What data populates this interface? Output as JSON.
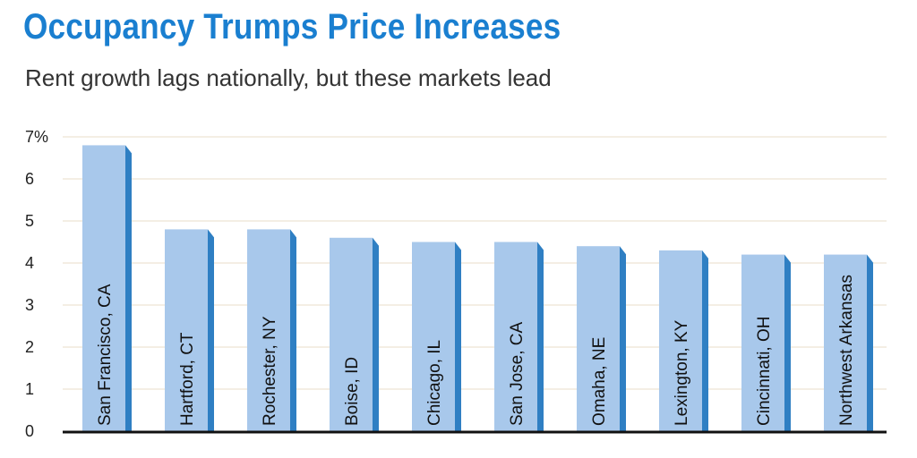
{
  "header": {
    "title": "Occupancy Trumps Price Increases",
    "subtitle": "Rent growth lags nationally, but these markets lead"
  },
  "colors": {
    "title": "#1a7fd0",
    "bar_face": "#a8c8eb",
    "bar_side": "#2f7fc3",
    "grid": "#e8dcc8",
    "axis": "#111111"
  },
  "chart_data": {
    "type": "bar",
    "title": "Occupancy Trumps Price Increases",
    "subtitle": "Rent growth lags nationally, but these markets lead",
    "categories": [
      "San Francisco, CA",
      "Hartford, CT",
      "Rochester, NY",
      "Boise, ID",
      "Chicago, IL",
      "San Jose, CA",
      "Omaha, NE",
      "Lexington, KY",
      "Cincinnati, OH",
      "Northwest Arkansas"
    ],
    "values": [
      6.8,
      4.8,
      4.8,
      4.6,
      4.5,
      4.5,
      4.4,
      4.3,
      4.2,
      4.2
    ],
    "ylim": [
      0,
      7
    ],
    "yticks": [
      "0",
      "1",
      "2",
      "3",
      "4",
      "5",
      "6",
      "7%"
    ],
    "xlabel": "",
    "ylabel": "",
    "grid": true,
    "legend": "none"
  }
}
